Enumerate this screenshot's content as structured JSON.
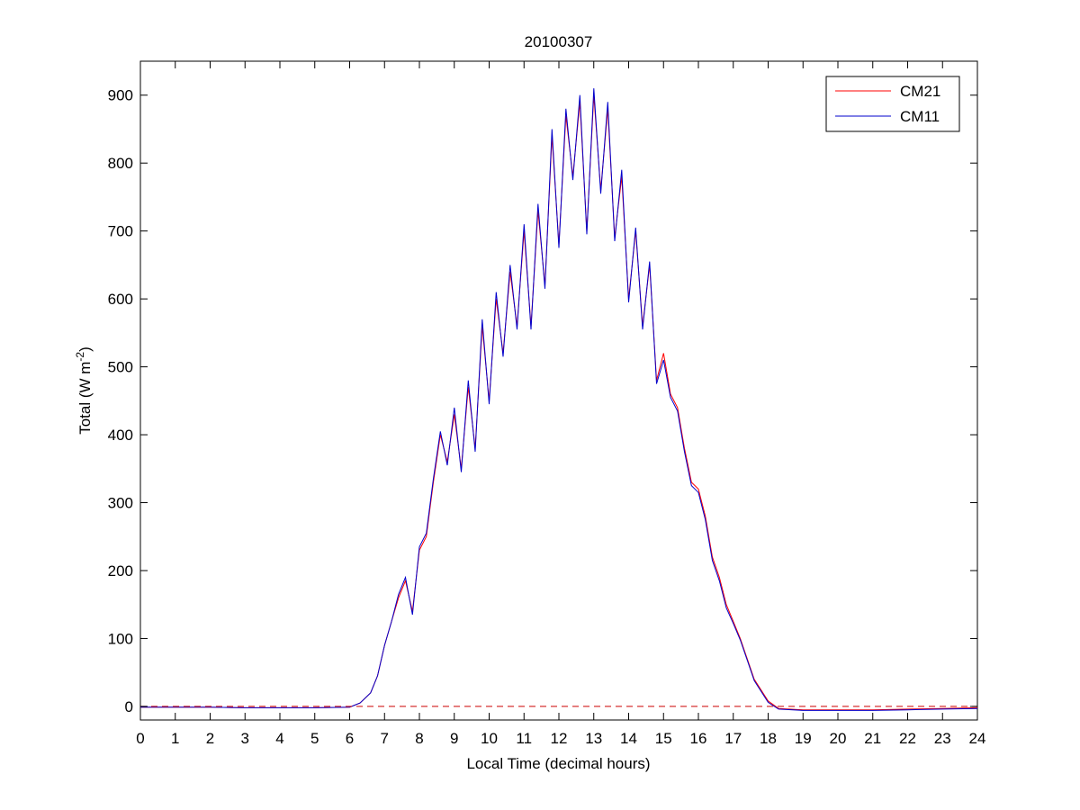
{
  "chart_data": {
    "type": "line",
    "title": "20100307",
    "xlabel": "Local Time (decimal hours)",
    "ylabel": "Total (W m^-2)",
    "ylabel_parts": {
      "main": "Total (W m",
      "sup": "-2",
      "close": ")"
    },
    "xlim": [
      0,
      24
    ],
    "ylim": [
      -20,
      950
    ],
    "xticks": [
      0,
      1,
      2,
      3,
      4,
      5,
      6,
      7,
      8,
      9,
      10,
      11,
      12,
      13,
      14,
      15,
      16,
      17,
      18,
      19,
      20,
      21,
      22,
      23,
      24
    ],
    "yticks": [
      0,
      100,
      200,
      300,
      400,
      500,
      600,
      700,
      800,
      900
    ],
    "grid": false,
    "legend_position": "top-right",
    "reference_line": {
      "y": 0,
      "style": "dashed",
      "color": "#cc0000"
    },
    "series": [
      {
        "name": "CM21",
        "color": "#ff0000",
        "x": [
          0,
          1,
          2,
          3,
          4,
          5,
          6,
          6.3,
          6.6,
          6.8,
          7,
          7.2,
          7.4,
          7.6,
          7.8,
          8,
          8.2,
          8.4,
          8.6,
          8.8,
          9,
          9.2,
          9.4,
          9.6,
          9.8,
          10,
          10.2,
          10.4,
          10.6,
          10.8,
          11,
          11.2,
          11.4,
          11.6,
          11.8,
          12,
          12.2,
          12.4,
          12.6,
          12.8,
          13,
          13.2,
          13.4,
          13.6,
          13.8,
          14,
          14.2,
          14.4,
          14.6,
          14.8,
          15,
          15.2,
          15.4,
          15.6,
          15.8,
          16,
          16.2,
          16.4,
          16.6,
          16.8,
          17,
          17.2,
          17.4,
          17.6,
          18,
          18.3,
          19,
          20,
          21,
          22,
          23,
          24
        ],
        "values": [
          -1,
          -1,
          -1,
          -2,
          -2,
          -2,
          -1,
          5,
          20,
          45,
          90,
          125,
          160,
          185,
          140,
          230,
          250,
          330,
          400,
          360,
          430,
          350,
          470,
          380,
          560,
          450,
          600,
          520,
          640,
          560,
          700,
          560,
          730,
          620,
          840,
          680,
          870,
          780,
          890,
          700,
          900,
          760,
          880,
          690,
          780,
          600,
          700,
          560,
          650,
          480,
          520,
          460,
          440,
          380,
          330,
          320,
          280,
          220,
          190,
          150,
          125,
          100,
          70,
          40,
          8,
          -3,
          -5,
          -5,
          -5,
          -4,
          -3,
          -2
        ]
      },
      {
        "name": "CM11",
        "color": "#0000cc",
        "x": [
          0,
          1,
          2,
          3,
          4,
          5,
          6,
          6.3,
          6.6,
          6.8,
          7,
          7.2,
          7.4,
          7.6,
          7.8,
          8,
          8.2,
          8.4,
          8.6,
          8.8,
          9,
          9.2,
          9.4,
          9.6,
          9.8,
          10,
          10.2,
          10.4,
          10.6,
          10.8,
          11,
          11.2,
          11.4,
          11.6,
          11.8,
          12,
          12.2,
          12.4,
          12.6,
          12.8,
          13,
          13.2,
          13.4,
          13.6,
          13.8,
          14,
          14.2,
          14.4,
          14.6,
          14.8,
          15,
          15.2,
          15.4,
          15.6,
          15.8,
          16,
          16.2,
          16.4,
          16.6,
          16.8,
          17,
          17.2,
          17.4,
          17.6,
          18,
          18.3,
          19,
          20,
          21,
          22,
          23,
          24
        ],
        "values": [
          -1,
          -1,
          -1,
          -2,
          -2,
          -2,
          -1,
          5,
          20,
          45,
          90,
          125,
          165,
          190,
          135,
          235,
          255,
          335,
          405,
          355,
          440,
          345,
          480,
          375,
          570,
          445,
          610,
          515,
          650,
          555,
          710,
          555,
          740,
          615,
          850,
          675,
          880,
          775,
          900,
          695,
          910,
          755,
          890,
          685,
          790,
          595,
          705,
          555,
          655,
          475,
          510,
          455,
          435,
          375,
          325,
          315,
          275,
          215,
          185,
          145,
          122,
          98,
          68,
          38,
          6,
          -4,
          -6,
          -6,
          -6,
          -5,
          -4,
          -3
        ]
      }
    ]
  }
}
